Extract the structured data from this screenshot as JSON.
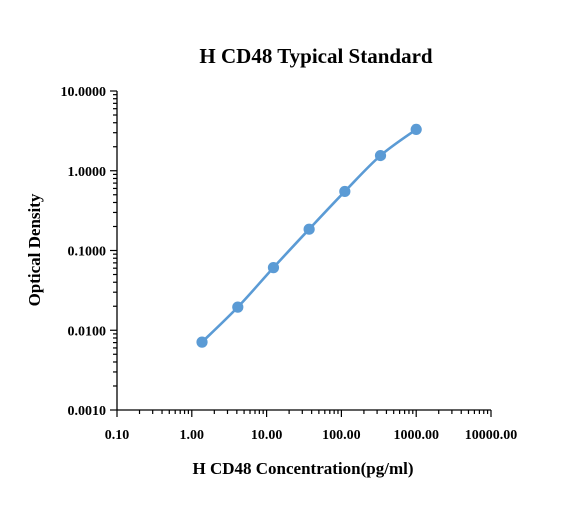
{
  "chart_data": {
    "type": "scatter",
    "title": "H CD48 Typical Standard",
    "xlabel": "H CD48 Concentration(pg/ml)",
    "ylabel": "Optical Density",
    "x_scale": "log",
    "y_scale": "log",
    "xlim": [
      0.1,
      10000
    ],
    "ylim": [
      0.001,
      10
    ],
    "x_ticks": [
      "0.10",
      "1.00",
      "10.00",
      "100.00",
      "1000.00",
      "10000.00"
    ],
    "y_ticks": [
      "0.0010",
      "0.0100",
      "0.1000",
      "1.0000",
      "10.0000"
    ],
    "grid": false,
    "series": [
      {
        "color": "#5b9bd5",
        "x": [
          1.37,
          4.12,
          12.35,
          37.04,
          111.11,
          333.33,
          1000
        ],
        "y": [
          0.0071,
          0.0195,
          0.061,
          0.185,
          0.55,
          1.55,
          3.3
        ]
      }
    ]
  }
}
